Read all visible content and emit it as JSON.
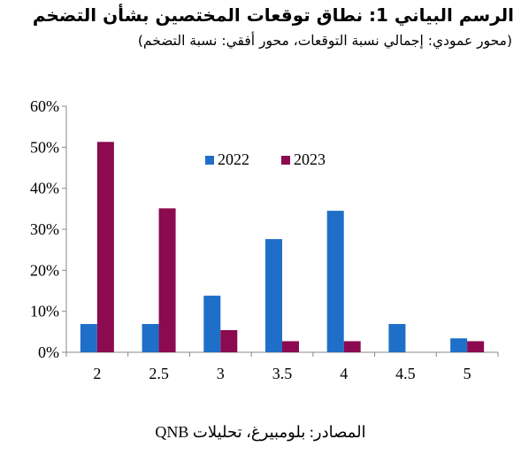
{
  "header": {
    "title": "الرسم البياني 1: نطاق توقعات المختصين بشأن التضخم",
    "subtitle": "(محور عمودي: إجمالي نسبة التوقعات، محور أفقي: نسبة التضخم)"
  },
  "footer": {
    "source": "المصادر: بلومبيرغ، تحليلات QNB"
  },
  "chart_data": {
    "type": "bar",
    "categories": [
      "2",
      "2.5",
      "3",
      "3.5",
      "4",
      "4.5",
      "5"
    ],
    "series": [
      {
        "name": "2022",
        "color": "#1f6fc8",
        "values": [
          6.9,
          6.9,
          13.8,
          27.6,
          34.5,
          6.9,
          3.4
        ]
      },
      {
        "name": "2023",
        "color": "#8b0a50",
        "values": [
          51.3,
          35.1,
          5.4,
          2.7,
          2.7,
          0,
          2.7
        ]
      }
    ],
    "ylim": [
      0,
      60
    ],
    "yticks": [
      0,
      10,
      20,
      30,
      40,
      50,
      60
    ],
    "ytick_labels": [
      "0%",
      "10%",
      "20%",
      "30%",
      "40%",
      "50%",
      "60%"
    ],
    "legend_position": "top-center",
    "grid": false,
    "xlabel": "",
    "ylabel": ""
  }
}
